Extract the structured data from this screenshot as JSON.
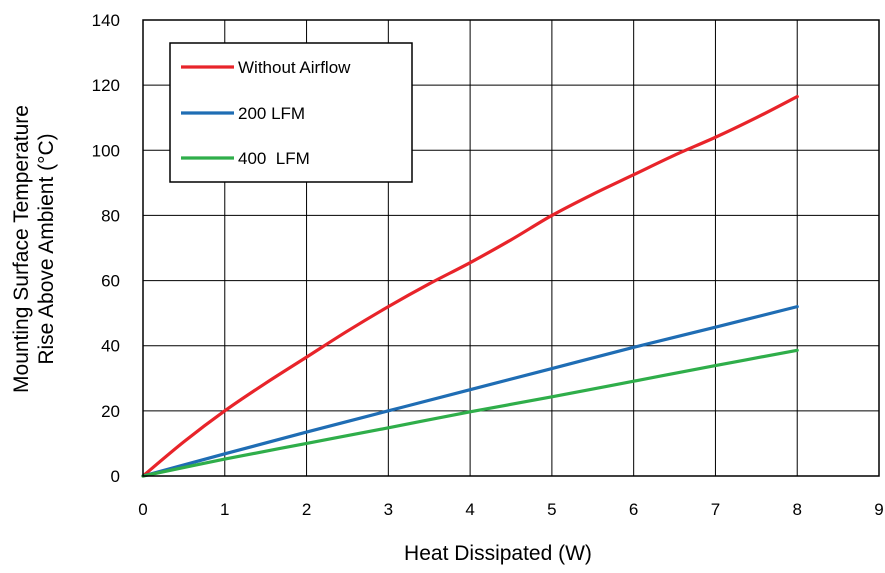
{
  "chart_data": {
    "type": "line",
    "title": "",
    "xlabel": "Heat Dissipated (W)",
    "ylabel_lines": [
      "Mounting Surface Temperature",
      "Rise Above  Ambient (°C)"
    ],
    "xlim": [
      0,
      9
    ],
    "ylim": [
      0,
      140
    ],
    "x_ticks": [
      "0",
      "1",
      "2",
      "3",
      "4",
      "5",
      "6",
      "7",
      "8",
      "9"
    ],
    "y_ticks": [
      "0",
      "20",
      "40",
      "60",
      "80",
      "100",
      "120",
      "140"
    ],
    "grid": true,
    "legend_position": "top-left",
    "series": [
      {
        "name": "Without Airflow",
        "color": "#e8242a",
        "x": [
          0,
          0.5,
          1,
          1.5,
          2,
          2.5,
          3,
          3.5,
          4,
          4.5,
          5,
          5.5,
          6,
          6.5,
          7,
          7.5,
          8
        ],
        "y": [
          0,
          10.5,
          20,
          28.5,
          36.5,
          44.5,
          52,
          59,
          65.5,
          72.5,
          80,
          86.5,
          92.5,
          98.5,
          104,
          110,
          116.5
        ]
      },
      {
        "name": "200 LFM",
        "color": "#1f6db4",
        "x": [
          0,
          1,
          2,
          3,
          4,
          5,
          6,
          7,
          8
        ],
        "y": [
          0,
          6.8,
          13.5,
          20,
          26.5,
          33,
          39.5,
          45.7,
          52
        ]
      },
      {
        "name": "400  LFM",
        "color": "#2fae4a",
        "x": [
          0,
          1,
          2,
          3,
          4,
          5,
          6,
          7,
          8
        ],
        "y": [
          0,
          5.2,
          10,
          14.8,
          19.7,
          24.3,
          29.1,
          33.9,
          38.6
        ]
      }
    ]
  }
}
